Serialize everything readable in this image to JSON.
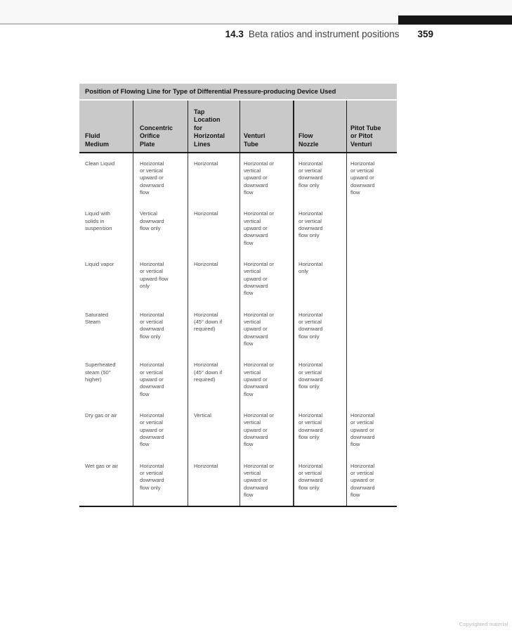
{
  "page": {
    "section_number": "14.3",
    "section_title": "Beta ratios and instrument positions",
    "page_number": "359",
    "copyright_note": "Copyrighted material"
  },
  "colors": {
    "table_header_bg": "#c9c9c9",
    "black_bar": "#161616",
    "body_text": "#4e4e4e",
    "rule_gray": "#bdbdbd"
  },
  "table": {
    "title": "Position of Flowing Line for Type of Differential Pressure-producing Device Used",
    "columns": {
      "fluid_medium": "Fluid\nMedium",
      "concentric_orifice_plate": "Concentric\nOrifice\nPlate",
      "tap_location": "Tap\nLocation\nfor\nHorizontal\nLines",
      "venturi_tube": "Venturi\nTube",
      "flow_nozzle": "Flow\nNozzle",
      "pitot_tube": "Pitot Tube\nor Pitot\nVenturi"
    },
    "rows": [
      {
        "fluid_medium": "Clean Liquid",
        "concentric_orifice_plate": "Horizontal\nor vertical\nupward or\ndownward\nflow",
        "tap_location": "Horizontal",
        "venturi_tube": "Horizontal or\nvertical\nupward or\ndownward\nflow",
        "flow_nozzle": "Horizontal\nor vertical\ndownward\nflow only",
        "pitot_tube": "Horizontal\nor vertical\nupward or\ndownward\nflow"
      },
      {
        "fluid_medium": "Liquid with\nsolids in\nsuspension",
        "concentric_orifice_plate": "Vertical\ndownward\nflow only",
        "tap_location": "Horizontal",
        "venturi_tube": "Horizontal or\nvertical\nupward or\ndownward\nflow",
        "flow_nozzle": "Horizontal\nor vertical\ndownward\nflow only",
        "pitot_tube": ""
      },
      {
        "fluid_medium": "Liquid vapor",
        "concentric_orifice_plate": "Horizontal\nor vertical\nupward flow\nonly",
        "tap_location": "Horizontal",
        "venturi_tube": "Horizontal or\nvertical\nupward or\ndownward\nflow",
        "flow_nozzle": "Horizontal\nonly",
        "pitot_tube": ""
      },
      {
        "fluid_medium": "Saturated\nSteam",
        "concentric_orifice_plate": "Horizontal\nor vertical\ndownward\nflow only",
        "tap_location": "Horizontal\n(45° down if\nrequired)",
        "venturi_tube": "Horizontal or\nvertical\nupward or\ndownward\nflow",
        "flow_nozzle": "Horizontal\nor vertical\ndownward\nflow only",
        "pitot_tube": ""
      },
      {
        "fluid_medium": "Superheated\nsteam (50°\nhigher)",
        "concentric_orifice_plate": "Horizontal\nor vertical\nupward or\ndownward\nflow",
        "tap_location": "Horizontal\n(45° down if\nrequired)",
        "venturi_tube": "Horizontal or\nvertical\nupward or\ndownward\nflow",
        "flow_nozzle": "Horizontal\nor vertical\ndownward\nflow only",
        "pitot_tube": ""
      },
      {
        "fluid_medium": "Dry gas or air",
        "concentric_orifice_plate": "Horizontal\nor vertical\nupward or\ndownward\nflow",
        "tap_location": "Vertical",
        "venturi_tube": "Horizontal or\nvertical\nupward or\ndownward\nflow",
        "flow_nozzle": "Horizontal\nor vertical\ndownward\nflow only",
        "pitot_tube": "Horizontal\nor vertical\nupward or\ndownward\nflow"
      },
      {
        "fluid_medium": "Wet gas or air",
        "concentric_orifice_plate": "Horizontal\nor vertical\ndownward\nflow only",
        "tap_location": "Horizontal",
        "venturi_tube": "Horizontal or\nvertical\nupward or\ndownward\nflow",
        "flow_nozzle": "Horizontal\nor vertical\ndownward\nflow only",
        "pitot_tube": "Horizontal\nor vertical\nupward or\ndownward\nflow"
      }
    ]
  }
}
